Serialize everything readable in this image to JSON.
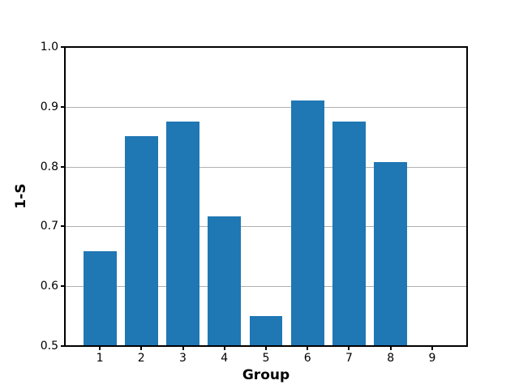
{
  "figure": {
    "background": "#ffffff"
  },
  "chart_data": {
    "type": "bar",
    "title": "",
    "xlabel": "Group",
    "ylabel": "1-S",
    "categories": [
      "1",
      "2",
      "3",
      "4",
      "5",
      "6",
      "7",
      "8",
      "9"
    ],
    "values": [
      0.658,
      0.851,
      0.875,
      0.717,
      0.55,
      0.91,
      0.875,
      0.808,
      0
    ],
    "bar_color": "#1f77b4",
    "bar_width_units": 0.8,
    "xlim": [
      0.16,
      9.84
    ],
    "ylim": [
      0.5,
      1.0
    ],
    "ytick_values": [
      0.5,
      0.6,
      0.7,
      0.8,
      0.9,
      1.0
    ],
    "ytick_labels": [
      "0.5",
      "0.6",
      "0.7",
      "0.8",
      "0.9",
      "1.0"
    ],
    "grid": "horizontal",
    "grid_color": "#b0b0b0",
    "axis_color": "#000000",
    "legend_position": "none"
  }
}
